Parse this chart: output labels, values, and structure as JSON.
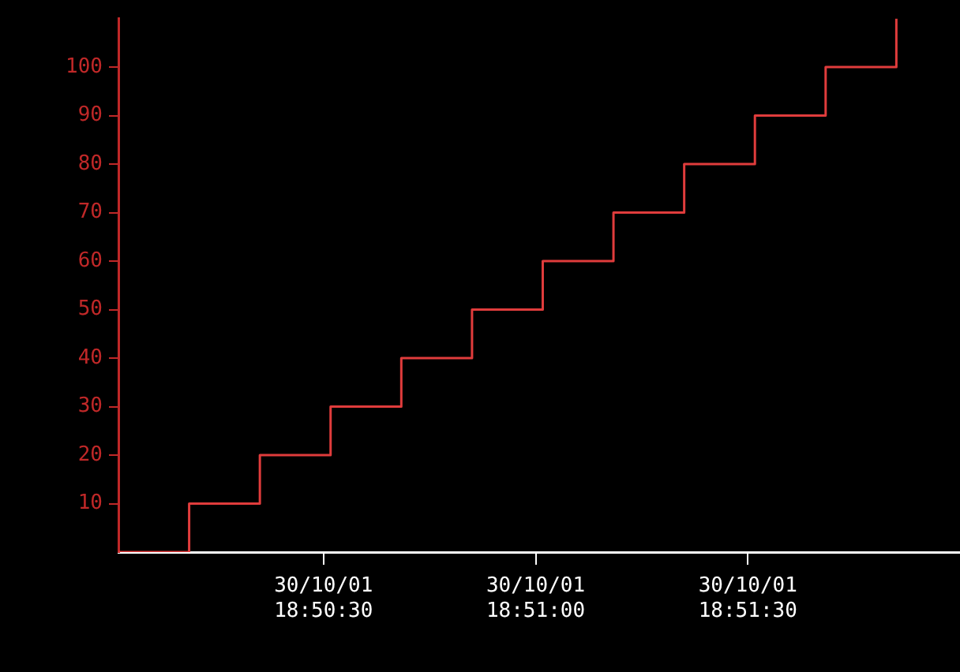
{
  "chart_data": {
    "type": "step",
    "x": [
      "--10-30T18:50:01",
      "--10-30T18:50:11",
      "--10-30T18:50:21",
      "--10-30T18:50:31",
      "--10-30T18:50:41",
      "--10-30T18:50:51",
      "--10-30T18:51:01",
      "--10-30T18:51:11",
      "--10-30T18:51:21",
      "--10-30T18:51:31",
      "--10-30T18:51:41",
      "--10-30T18:51:51"
    ],
    "series": [
      {
        "color": "#e03c3c",
        "values": [
          0,
          10,
          20,
          30,
          40,
          50,
          60,
          70,
          80,
          90,
          100,
          110
        ]
      }
    ],
    "xlim": [
      "--10-30T18:50:01",
      "--10-30T18:52:00"
    ],
    "xticks": [
      {
        "value": "--10-30T18:50:30",
        "label": "30/10/01\n18:50:30"
      },
      {
        "value": "--10-30T18:51:00",
        "label": "30/10/01\n18:51:00"
      },
      {
        "value": "--10-30T18:51:30",
        "label": "30/10/01\n18:51:30"
      }
    ],
    "ylim": [
      0,
      110
    ],
    "yticks": [
      10,
      20,
      30,
      40,
      50,
      60,
      70,
      80,
      90,
      100
    ],
    "marker": "none",
    "line_style": "solid"
  }
}
